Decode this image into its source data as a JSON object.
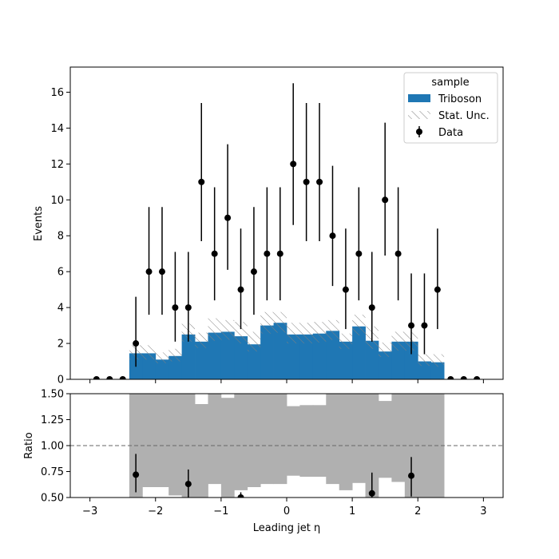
{
  "chart_data": {
    "type": "bar",
    "bin_edges": [
      -3.0,
      -2.8,
      -2.6,
      -2.4,
      -2.2,
      -2.0,
      -1.8,
      -1.6,
      -1.4,
      -1.2,
      -1.0,
      -0.8,
      -0.6,
      -0.4,
      -0.2,
      0.0,
      0.2,
      0.4,
      0.6,
      0.8,
      1.0,
      1.2,
      1.4,
      1.6,
      1.8,
      2.0,
      2.2,
      2.4,
      2.6,
      2.8,
      3.0
    ],
    "xlabel": "Leading jet  η",
    "xlim": [
      -3.3,
      3.3
    ],
    "xticks": [
      -3,
      -2,
      -1,
      0,
      1,
      2,
      3
    ],
    "xtick_labels": [
      "−3",
      "−2",
      "−1",
      "0",
      "1",
      "2",
      "3"
    ],
    "main": {
      "ylabel": "Events",
      "ylim": [
        0,
        17.4
      ],
      "yticks": [
        0,
        2,
        4,
        6,
        8,
        10,
        12,
        14,
        16
      ],
      "ytick_labels": [
        "0",
        "2",
        "4",
        "6",
        "8",
        "10",
        "12",
        "14",
        "16"
      ],
      "series": [
        {
          "name": "Triboson",
          "style": "filled-step",
          "color": "#1f77b4",
          "values": [
            0,
            0,
            0,
            1.45,
            1.45,
            1.1,
            1.3,
            2.5,
            2.1,
            2.6,
            2.65,
            2.4,
            1.95,
            3.0,
            3.15,
            2.5,
            2.5,
            2.55,
            2.7,
            2.1,
            2.95,
            2.15,
            1.55,
            2.1,
            2.1,
            1.0,
            0.95,
            0,
            0,
            0
          ]
        },
        {
          "name": "Stat. Unc.",
          "style": "hatched-band",
          "color": "#808080",
          "low": [
            0,
            0,
            0,
            1.1,
            1.1,
            0.9,
            1.0,
            2.1,
            1.75,
            2.15,
            2.2,
            2.0,
            1.55,
            2.55,
            2.6,
            2.0,
            2.0,
            2.05,
            2.2,
            1.7,
            2.45,
            1.7,
            1.25,
            1.6,
            1.6,
            0.75,
            0.7,
            0,
            0,
            0
          ],
          "high": [
            0,
            0,
            0,
            1.9,
            1.9,
            1.5,
            1.7,
            3.1,
            2.6,
            3.4,
            3.3,
            3.2,
            2.65,
            3.75,
            3.75,
            3.15,
            3.15,
            3.2,
            3.3,
            2.55,
            3.6,
            2.95,
            2.05,
            2.65,
            2.65,
            1.4,
            1.4,
            0,
            0,
            0
          ]
        },
        {
          "name": "Data",
          "style": "points-with-errors",
          "color": "#000000",
          "values": [
            0,
            0,
            0,
            2,
            6,
            6,
            4,
            4,
            11,
            7,
            9,
            5,
            6,
            7,
            7,
            12,
            11,
            11,
            8,
            5,
            7,
            4,
            10,
            7,
            3,
            3,
            5,
            0,
            0,
            0
          ],
          "err_low": [
            0,
            0,
            0,
            1.3,
            2.4,
            2.4,
            1.9,
            1.9,
            3.3,
            2.6,
            2.9,
            2.2,
            2.4,
            2.6,
            2.6,
            3.4,
            3.3,
            3.3,
            2.8,
            2.2,
            2.6,
            1.9,
            3.1,
            2.6,
            1.6,
            1.6,
            2.2,
            0,
            0,
            0
          ],
          "err_high": [
            0,
            0,
            0,
            2.6,
            3.6,
            3.6,
            3.1,
            3.1,
            4.4,
            3.7,
            4.1,
            3.4,
            3.6,
            3.7,
            3.7,
            4.5,
            4.4,
            4.4,
            3.9,
            3.4,
            3.7,
            3.1,
            4.3,
            3.7,
            2.9,
            2.9,
            3.4,
            0,
            0,
            0
          ]
        }
      ],
      "legend": {
        "title": "sample",
        "placement": "top-right",
        "entries": [
          "Triboson",
          "Stat. Unc.",
          "Data"
        ]
      }
    },
    "ratio": {
      "ylabel": "Ratio",
      "ylim": [
        0.5,
        1.5
      ],
      "yticks": [
        0.5,
        0.75,
        1.0,
        1.25,
        1.5
      ],
      "ytick_labels": [
        "0.50",
        "0.75",
        "1.00",
        "1.25",
        "1.50"
      ],
      "reference_line": 1.0,
      "band_color": "#b0b0b0",
      "band_low": [
        null,
        null,
        null,
        0.5,
        0.6,
        0.6,
        0.52,
        0.5,
        0.5,
        0.63,
        0.5,
        0.57,
        0.6,
        0.63,
        0.63,
        0.71,
        0.7,
        0.7,
        0.63,
        0.57,
        0.64,
        0.5,
        0.69,
        0.65,
        0.5,
        0.5,
        0.5,
        null,
        null,
        null
      ],
      "band_high": [
        null,
        null,
        null,
        1.5,
        1.5,
        1.5,
        1.5,
        1.5,
        1.4,
        1.5,
        1.46,
        1.5,
        1.5,
        1.5,
        1.5,
        1.38,
        1.39,
        1.39,
        1.5,
        1.5,
        1.5,
        1.5,
        1.43,
        1.5,
        1.5,
        1.5,
        1.5,
        null,
        null,
        null
      ],
      "points": [
        {
          "x": -2.3,
          "y": 0.72,
          "err_low": 0.17,
          "err_high": 0.2
        },
        {
          "x": -1.5,
          "y": 0.63,
          "err_low": 0.13,
          "err_high": 0.14
        },
        {
          "x": -0.7,
          "y": 0.5,
          "err_low": 0.05,
          "err_high": 0.05
        },
        {
          "x": 1.3,
          "y": 0.54,
          "err_low": 0.1,
          "err_high": 0.2
        },
        {
          "x": 1.9,
          "y": 0.71,
          "err_low": 0.2,
          "err_high": 0.18
        }
      ]
    }
  }
}
